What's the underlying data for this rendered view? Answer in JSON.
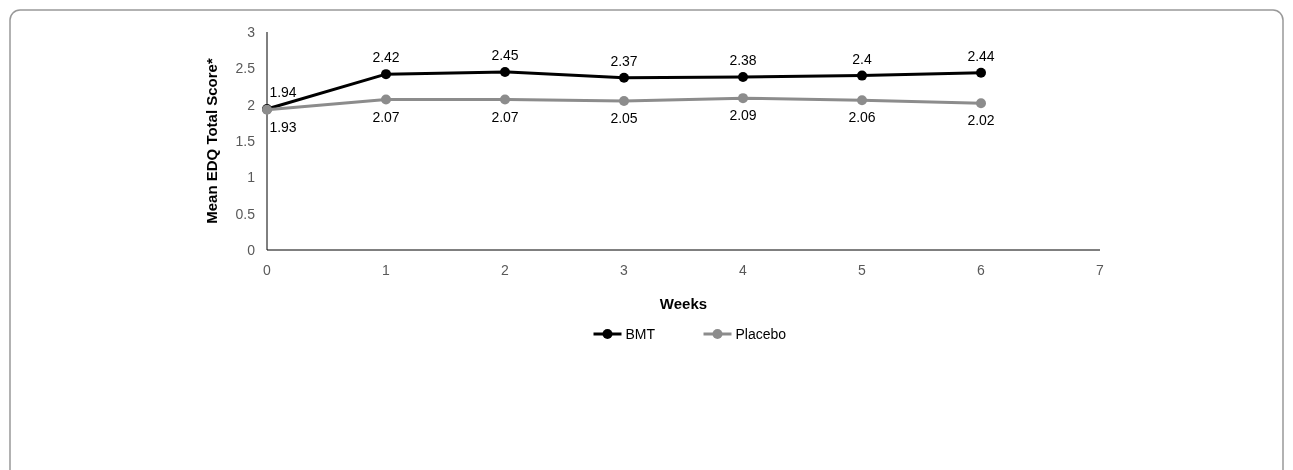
{
  "chart_data": {
    "type": "line",
    "xlabel": "Weeks",
    "ylabel": "Mean EDQ Total Score*",
    "x": [
      0,
      1,
      2,
      3,
      4,
      5,
      6
    ],
    "series": [
      {
        "name": "BMT",
        "color": "#000000",
        "values": [
          1.94,
          2.42,
          2.45,
          2.37,
          2.38,
          2.4,
          2.44
        ]
      },
      {
        "name": "Placebo",
        "color": "#8c8c8c",
        "values": [
          1.93,
          2.07,
          2.07,
          2.05,
          2.09,
          2.06,
          2.02
        ]
      }
    ],
    "xlim": [
      0,
      7
    ],
    "xticks": [
      0,
      1,
      2,
      3,
      4,
      5,
      6,
      7
    ],
    "ylim": [
      0,
      3
    ],
    "yticks": [
      0,
      0.5,
      1,
      1.5,
      2,
      2.5,
      3
    ],
    "data_labels": true,
    "grid": false,
    "legend": "bottom",
    "marker": "circle",
    "line_style": "solid"
  }
}
